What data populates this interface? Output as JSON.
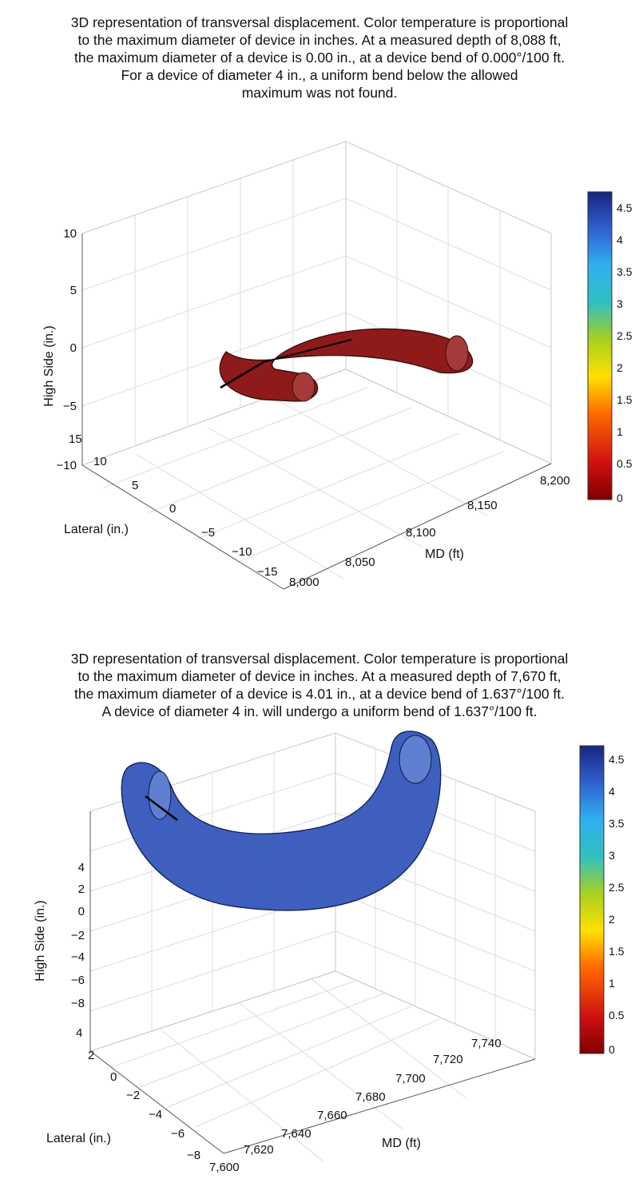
{
  "chart_data": [
    {
      "type": "surface3d",
      "caption_lines": [
        "3D representation of transversal displacement. Color temperature is proportional",
        "to the maximum diameter of device in inches. At a measured depth of 8,088 ft,",
        "the maximum diameter of a device is 0.00 in., at a device bend of 0.000°/100 ft.",
        "For a device of diameter 4 in., a uniform bend below the allowed",
        "maximum was not found."
      ],
      "zlabel": "High Side (in.)",
      "ylabel": "Lateral (in.)",
      "xlabel": "MD (ft)",
      "z_ticks": [
        "10",
        "5",
        "0",
        "−5",
        "−10"
      ],
      "y_ticks": [
        "15",
        "10",
        "5",
        "0",
        "−5",
        "−10",
        "−15"
      ],
      "x_ticks": [
        "8,000",
        "8,050",
        "8,100",
        "8,150",
        "8,200"
      ],
      "zlim": [
        -10,
        10
      ],
      "ylim": [
        -15,
        15
      ],
      "xlim": [
        8000,
        8200
      ],
      "measured_depth_ft": 8088,
      "max_diameter_in": 0.0,
      "device_bend_deg_per_100ft": 0.0,
      "surface_color_value": 0.0,
      "surface_color": "#8f1a1a",
      "colorbar": {
        "min": 0,
        "max": 4.75,
        "ticks": [
          "4.5",
          "4",
          "3.5",
          "3",
          "2.5",
          "2",
          "1.5",
          "1",
          "0.5",
          "0"
        ]
      },
      "grid": true
    },
    {
      "type": "surface3d",
      "caption_lines": [
        "3D representation of transversal displacement. Color temperature is proportional",
        "to the maximum diameter of device in inches. At a measured depth of 7,670 ft,",
        "the maximum diameter of a device is 4.01 in., at a device bend of 1.637°/100 ft.",
        "A device of diameter 4 in. will undergo a uniform bend of 1.637°/100 ft."
      ],
      "zlabel": "High Side (in.)",
      "ylabel": "Lateral (in.)",
      "xlabel": "MD (ft)",
      "z_ticks": [
        "4",
        "2",
        "0",
        "−2",
        "−4",
        "−6",
        "−8"
      ],
      "y_ticks": [
        "4",
        "2",
        "0",
        "−2",
        "−4",
        "−6",
        "−8"
      ],
      "x_ticks": [
        "7,600",
        "7,620",
        "7,640",
        "7,660",
        "7,680",
        "7,700",
        "7,720",
        "7,740"
      ],
      "zlim": [
        -8,
        4
      ],
      "ylim": [
        -8,
        4
      ],
      "xlim": [
        7600,
        7740
      ],
      "measured_depth_ft": 7670,
      "max_diameter_in": 4.01,
      "device_bend_deg_per_100ft": 1.637,
      "surface_color_value": 4.01,
      "surface_color": "#3f5fbf",
      "colorbar": {
        "min": 0,
        "max": 4.75,
        "ticks": [
          "4.5",
          "4",
          "3.5",
          "3",
          "2.5",
          "2",
          "1.5",
          "1",
          "0.5",
          "0"
        ]
      },
      "grid": true
    }
  ]
}
